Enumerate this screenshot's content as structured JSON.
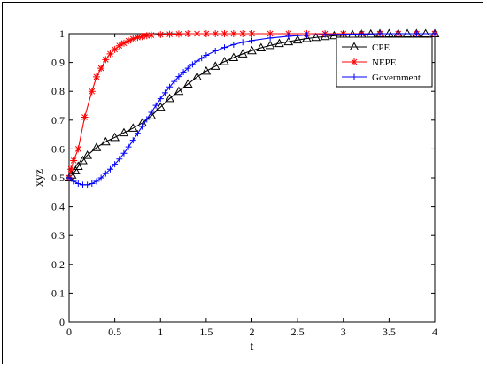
{
  "chart_data": {
    "type": "line",
    "xlabel": "t",
    "ylabel": "xyz",
    "xlim": [
      0,
      4
    ],
    "ylim": [
      0,
      1
    ],
    "xticks": [
      "0",
      "0.5",
      "1",
      "1.5",
      "2",
      "2.5",
      "3",
      "3.5",
      "4"
    ],
    "yticks": [
      "0",
      "0.1",
      "0.2",
      "0.3",
      "0.4",
      "0.5",
      "0.6",
      "0.7",
      "0.8",
      "0.9",
      "1"
    ],
    "grid": false,
    "legend_position": "top-right",
    "series": [
      {
        "name": "CPE",
        "color": "#000000",
        "marker": "triangle",
        "x": [
          0,
          0.03,
          0.07,
          0.1,
          0.15,
          0.2,
          0.3,
          0.4,
          0.5,
          0.6,
          0.7,
          0.8,
          0.9,
          1.0,
          1.1,
          1.2,
          1.3,
          1.4,
          1.5,
          1.6,
          1.7,
          1.8,
          1.9,
          2.0,
          2.1,
          2.2,
          2.3,
          2.4,
          2.5,
          2.6,
          2.7,
          2.8,
          2.9,
          3.0,
          3.1,
          3.2,
          3.3,
          3.4,
          3.5,
          3.6,
          3.7,
          3.8,
          3.9,
          4.0
        ],
        "y": [
          0.5,
          0.51,
          0.525,
          0.54,
          0.56,
          0.578,
          0.605,
          0.625,
          0.64,
          0.656,
          0.672,
          0.69,
          0.715,
          0.745,
          0.775,
          0.8,
          0.825,
          0.85,
          0.87,
          0.887,
          0.903,
          0.917,
          0.93,
          0.941,
          0.951,
          0.959,
          0.966,
          0.972,
          0.978,
          0.983,
          0.987,
          0.99,
          0.993,
          0.995,
          0.997,
          0.998,
          0.999,
          1.0,
          1.0,
          1.0,
          1.0,
          1.0,
          1.0,
          1.0
        ]
      },
      {
        "name": "NEPE",
        "color": "#ff0000",
        "marker": "star",
        "x": [
          0,
          0.02,
          0.05,
          0.1,
          0.17,
          0.25,
          0.3,
          0.35,
          0.4,
          0.45,
          0.5,
          0.55,
          0.6,
          0.65,
          0.7,
          0.75,
          0.8,
          0.85,
          0.9,
          1.0,
          1.1,
          1.2,
          1.3,
          1.4,
          1.5,
          1.6,
          1.7,
          1.8,
          1.9,
          2.0,
          2.2,
          2.4,
          2.6,
          2.8,
          3.0,
          3.2,
          3.4,
          3.6,
          3.8,
          4.0
        ],
        "y": [
          0.5,
          0.53,
          0.56,
          0.6,
          0.71,
          0.8,
          0.85,
          0.88,
          0.91,
          0.93,
          0.945,
          0.958,
          0.967,
          0.975,
          0.982,
          0.987,
          0.99,
          0.993,
          0.995,
          0.997,
          0.998,
          0.999,
          1.0,
          1.0,
          1.0,
          1.0,
          1.0,
          1.0,
          1.0,
          1.0,
          1.0,
          1.0,
          1.0,
          1.0,
          1.0,
          1.0,
          1.0,
          1.0,
          1.0,
          1.0
        ]
      },
      {
        "name": "Government",
        "color": "#0000ff",
        "marker": "plus",
        "x": [
          0,
          0.05,
          0.1,
          0.15,
          0.2,
          0.25,
          0.3,
          0.35,
          0.4,
          0.45,
          0.5,
          0.55,
          0.6,
          0.65,
          0.7,
          0.75,
          0.8,
          0.85,
          0.9,
          0.95,
          1.0,
          1.05,
          1.1,
          1.15,
          1.2,
          1.25,
          1.3,
          1.35,
          1.4,
          1.45,
          1.5,
          1.6,
          1.7,
          1.8,
          1.9,
          2.0,
          2.2,
          2.4,
          2.6,
          2.8,
          3.0,
          3.2,
          3.4,
          3.6,
          3.8,
          4.0
        ],
        "y": [
          0.5,
          0.488,
          0.48,
          0.476,
          0.476,
          0.48,
          0.488,
          0.5,
          0.515,
          0.53,
          0.547,
          0.565,
          0.585,
          0.607,
          0.63,
          0.654,
          0.678,
          0.703,
          0.727,
          0.751,
          0.774,
          0.795,
          0.815,
          0.834,
          0.851,
          0.866,
          0.88,
          0.893,
          0.905,
          0.915,
          0.925,
          0.94,
          0.952,
          0.962,
          0.97,
          0.976,
          0.985,
          0.991,
          0.995,
          0.997,
          0.998,
          0.999,
          1.0,
          1.0,
          1.0,
          1.0
        ]
      }
    ]
  }
}
